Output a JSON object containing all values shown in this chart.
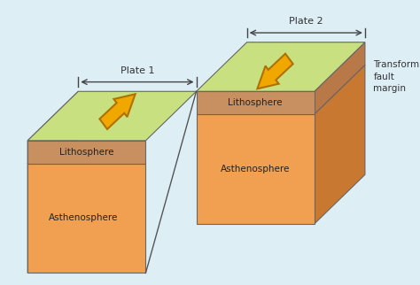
{
  "bg_color": "#ddeef5",
  "asthenosphere_color": "#f0a050",
  "asthenosphere_side_color": "#c87830",
  "lithosphere_front_color": "#c89060",
  "lithosphere_side_color": "#b87848",
  "top_surface_color": "#c8e080",
  "arrow_color": "#f0a800",
  "arrow_edge_color": "#b07000",
  "label_color": "#222222",
  "plate1_label": "Plate 1",
  "plate2_label": "Plate 2",
  "transform_label": "Transform\nfault\nmargin",
  "litho_label": "Lithosphere",
  "asthen_label": "Asthenosphere"
}
